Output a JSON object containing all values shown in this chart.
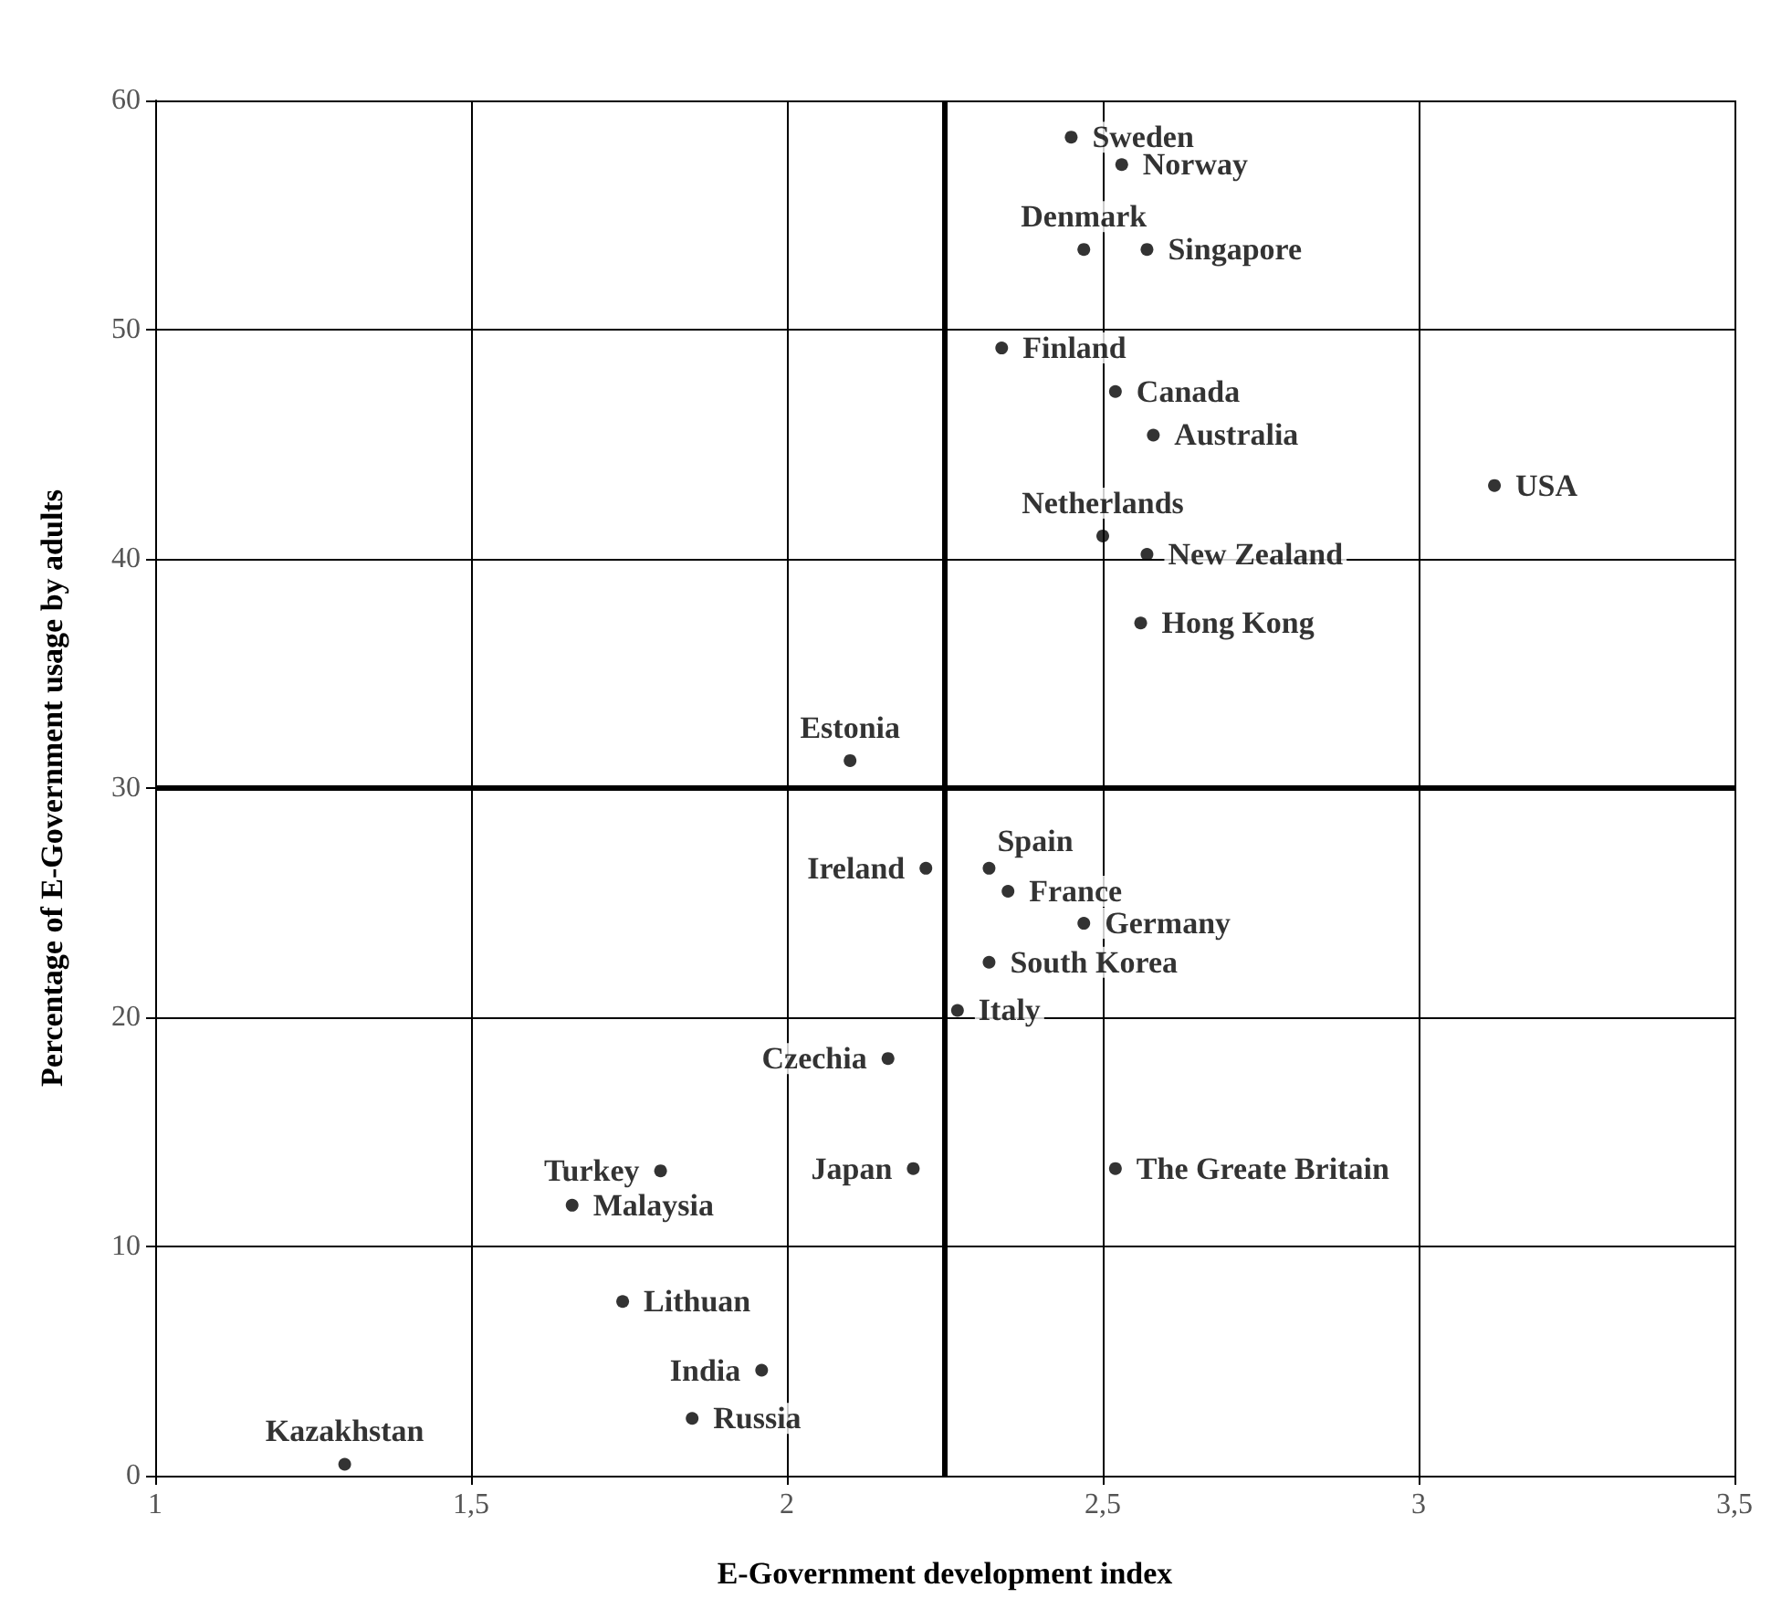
{
  "chart_data": {
    "type": "scatter",
    "xlabel": "E-Government development index",
    "ylabel": "Percentage of E-Government usage by adults",
    "xlim": [
      1,
      3.5
    ],
    "xticks": [
      1,
      {
        "value": 1.5,
        "label": "1,5"
      },
      2,
      {
        "value": 2.5,
        "label": "2,5"
      },
      3,
      {
        "value": 3.5,
        "label": "3,5"
      }
    ],
    "ylim": [
      0,
      60
    ],
    "yticks": [
      0,
      10,
      20,
      30,
      40,
      50,
      60
    ],
    "grid": true,
    "legend": false,
    "marker": "circle",
    "ref_lines": [
      {
        "axis": "x",
        "value": 2.25
      },
      {
        "axis": "y",
        "value": 30
      }
    ],
    "series": [
      {
        "name": "Sweden",
        "color": "#000000",
        "x": [
          2.45
        ],
        "values": [
          58.4
        ]
      },
      {
        "name": "Norway",
        "color": "#000000",
        "x": [
          2.53
        ],
        "values": [
          57.2
        ]
      },
      {
        "name": "Denmark",
        "color": "#000000",
        "x": [
          2.47
        ],
        "values": [
          53.5
        ]
      },
      {
        "name": "Singapore",
        "color": "#000000",
        "x": [
          2.57
        ],
        "values": [
          53.5
        ]
      },
      {
        "name": "Finland",
        "color": "#000000",
        "x": [
          2.34
        ],
        "values": [
          49.2
        ]
      },
      {
        "name": "Canada",
        "color": "#000000",
        "x": [
          2.52
        ],
        "values": [
          47.3
        ]
      },
      {
        "name": "Australia",
        "color": "#000000",
        "x": [
          2.58
        ],
        "values": [
          45.4
        ]
      },
      {
        "name": "USA",
        "color": "#000000",
        "x": [
          3.12
        ],
        "values": [
          43.2
        ]
      },
      {
        "name": "Netherlands",
        "color": "#000000",
        "x": [
          2.5
        ],
        "values": [
          41.0
        ]
      },
      {
        "name": "New Zealand",
        "color": "#000000",
        "x": [
          2.57
        ],
        "values": [
          40.2
        ]
      },
      {
        "name": "Hong Kong",
        "color": "#000000",
        "x": [
          2.56
        ],
        "values": [
          37.2
        ]
      },
      {
        "name": "Estonia",
        "color": "#000000",
        "x": [
          2.1
        ],
        "values": [
          31.2
        ]
      },
      {
        "name": "Ireland",
        "color": "#000000",
        "x": [
          2.22
        ],
        "values": [
          26.5
        ]
      },
      {
        "name": "Spain",
        "color": "#000000",
        "x": [
          2.32
        ],
        "values": [
          26.5
        ]
      },
      {
        "name": "France",
        "color": "#000000",
        "x": [
          2.35
        ],
        "values": [
          25.5
        ]
      },
      {
        "name": "Germany",
        "color": "#000000",
        "x": [
          2.47
        ],
        "values": [
          24.1
        ]
      },
      {
        "name": "South Korea",
        "color": "#000000",
        "x": [
          2.32
        ],
        "values": [
          22.4
        ]
      },
      {
        "name": "Italy",
        "color": "#000000",
        "x": [
          2.27
        ],
        "values": [
          20.3
        ]
      },
      {
        "name": "Czechia",
        "color": "#000000",
        "x": [
          2.16
        ],
        "values": [
          18.2
        ]
      },
      {
        "name": "Japan",
        "color": "#000000",
        "x": [
          2.2
        ],
        "values": [
          13.4
        ]
      },
      {
        "name": "The Greate Britain",
        "color": "#000000",
        "x": [
          2.52
        ],
        "values": [
          13.4
        ]
      },
      {
        "name": "Turkey",
        "color": "#000000",
        "x": [
          1.8
        ],
        "values": [
          13.3
        ]
      },
      {
        "name": "Malaysia",
        "color": "#000000",
        "x": [
          1.66
        ],
        "values": [
          11.8
        ]
      },
      {
        "name": "Lithuan",
        "color": "#000000",
        "x": [
          1.74
        ],
        "values": [
          7.6
        ]
      },
      {
        "name": "India",
        "color": "#000000",
        "x": [
          1.96
        ],
        "values": [
          4.6
        ]
      },
      {
        "name": "Russia",
        "color": "#000000",
        "x": [
          1.85
        ],
        "values": [
          2.5
        ]
      },
      {
        "name": "Kazakhstan",
        "color": "#000000",
        "x": [
          1.3
        ],
        "values": [
          0.5
        ]
      }
    ]
  }
}
